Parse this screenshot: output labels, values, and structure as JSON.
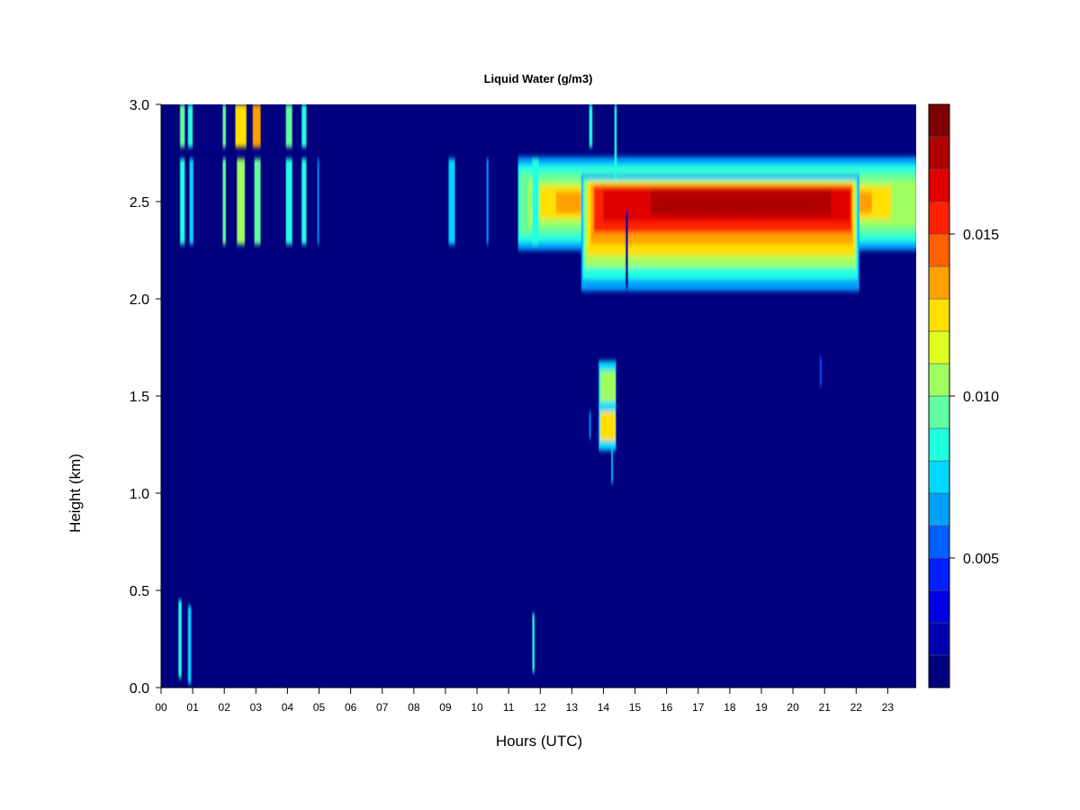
{
  "chart_data": {
    "type": "heatmap",
    "title": "Liquid Water (g/m3)",
    "xlabel": "Hours (UTC)",
    "ylabel": "Height (km)",
    "x_ticks": [
      "00",
      "01",
      "02",
      "03",
      "04",
      "05",
      "06",
      "07",
      "08",
      "09",
      "10",
      "11",
      "12",
      "13",
      "14",
      "15",
      "16",
      "17",
      "18",
      "19",
      "20",
      "21",
      "22",
      "23"
    ],
    "xlim": [
      0,
      23.9
    ],
    "y_ticks": [
      "0.0",
      "0.5",
      "1.0",
      "1.5",
      "2.0",
      "2.5",
      "3.0"
    ],
    "ylim": [
      0,
      3
    ],
    "colorbar": {
      "range": [
        0.001,
        0.019
      ],
      "ticks": [
        "0.005",
        "0.010",
        "0.015"
      ],
      "tick_values": [
        0.005,
        0.01,
        0.015
      ],
      "colors": [
        "#00007F",
        "#0000B0",
        "#0000E0",
        "#0020FF",
        "#0060FF",
        "#00A0FF",
        "#00D8FF",
        "#20FFE0",
        "#60FFA0",
        "#A0FF60",
        "#E0FF20",
        "#FFE000",
        "#FFA000",
        "#FF6000",
        "#FF2000",
        "#E00000",
        "#B00000",
        "#7F0000"
      ]
    },
    "background_value": 0.001,
    "features": [
      {
        "desc": "persistent cloud layer",
        "x": [
          11.3,
          23.9
        ],
        "y": [
          2.25,
          2.72
        ],
        "peak_value": 0.012
      },
      {
        "desc": "core of cloud layer",
        "x": [
          13.3,
          22.1
        ],
        "y": [
          2.05,
          2.65
        ],
        "peak_value": 0.0175
      },
      {
        "desc": "mid-level cloud",
        "x": [
          13.85,
          14.4
        ],
        "y": [
          1.2,
          1.68
        ],
        "peak_value": 0.0125
      },
      {
        "desc": "intermittent layer",
        "x": [
          0.6,
          10.4
        ],
        "y": [
          2.3,
          2.7
        ],
        "peak_value": 0.011
      },
      {
        "desc": "intermittent upper streaks",
        "x": [
          0.6,
          4.6
        ],
        "y": [
          2.8,
          3.0
        ],
        "peak_value": 0.013
      },
      {
        "desc": "near-surface streaks",
        "x": [
          0.6,
          1.0
        ],
        "y": [
          0.05,
          0.45
        ],
        "peak_value": 0.009
      }
    ]
  }
}
